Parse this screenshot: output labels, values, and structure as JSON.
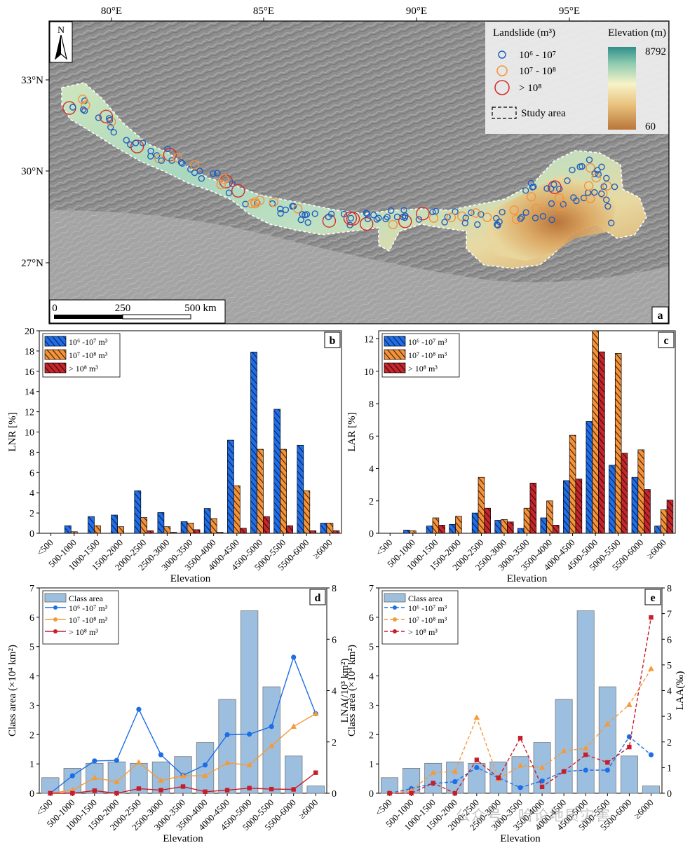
{
  "panel_a": {
    "letter": "a",
    "north_label": "N",
    "lon_ticks": [
      "80°E",
      "85°E",
      "90°E",
      "95°E"
    ],
    "lat_ticks": [
      "33°N",
      "30°N",
      "27°N"
    ],
    "legend": {
      "landslide_title": "Landslide (m³)",
      "classes": [
        "10⁶ - 10⁷",
        "10⁷ - 10⁸",
        "> 10⁸"
      ],
      "study_area": "Study area",
      "elevation_title": "Elevation (m)",
      "elev_max": "8792",
      "elev_min": "60"
    },
    "scalebar": [
      "0",
      "250",
      "500 km"
    ],
    "colors": {
      "small": "#1f5fbf",
      "medium": "#f5923a",
      "large": "#d42a2a"
    }
  },
  "chart_data": [
    {
      "panel": "b",
      "type": "bar",
      "ylabel": "LNR [%]",
      "xlabel": "Elevation",
      "ylim": [
        0,
        20
      ],
      "yticks": [
        0,
        2,
        4,
        6,
        8,
        10,
        12,
        14,
        16,
        18,
        20
      ],
      "categories": [
        "<500",
        "500-1000",
        "1000-1500",
        "1500-2000",
        "2000-2500",
        "2500-3000",
        "3000-3500",
        "3500-4000",
        "4000-4500",
        "4500-5000",
        "5000-5500",
        "5500-6000",
        "≥6000"
      ],
      "legend": [
        "10⁶ -10⁷ m³",
        "10⁷ -10⁸ m³",
        "> 10⁸ m³"
      ],
      "series": [
        {
          "name": "10⁶ -10⁷ m³",
          "color": "#1f6fe8",
          "values": [
            0,
            0.75,
            1.65,
            1.8,
            4.2,
            2.05,
            1.15,
            2.45,
            9.2,
            17.9,
            12.25,
            8.7,
            1.0
          ]
        },
        {
          "name": "10⁷ -10⁸ m³",
          "color": "#f5923a",
          "values": [
            0,
            0.15,
            0.75,
            0.65,
            1.55,
            0.65,
            1.0,
            1.45,
            4.7,
            8.3,
            8.3,
            4.2,
            1.0
          ]
        },
        {
          "name": "> 10⁸ m³",
          "color": "#c6262b",
          "values": [
            0,
            0,
            0,
            0,
            0.25,
            0.1,
            0.35,
            0.1,
            0.5,
            1.65,
            0.75,
            0.25,
            0.25
          ]
        }
      ]
    },
    {
      "panel": "c",
      "type": "bar",
      "ylabel": "LAR [%]",
      "xlabel": "Elevation",
      "ylim": [
        0,
        12.5
      ],
      "yticks": [
        0,
        2,
        4,
        6,
        8,
        10,
        12
      ],
      "categories": [
        "<500",
        "500-1000",
        "1000-1500",
        "1500-2000",
        "2000-2500",
        "2500-3000",
        "3000-3500",
        "3500-4000",
        "4000-4500",
        "4500-5000",
        "5000-5500",
        "5500-6000",
        "≥6000"
      ],
      "legend": [
        "10⁶ -10⁷ m³",
        "10⁷ -10⁸ m³",
        "> 10⁸ m³"
      ],
      "series": [
        {
          "name": "10⁶ -10⁷ m³",
          "color": "#1f6fe8",
          "values": [
            0,
            0.2,
            0.45,
            0.55,
            1.25,
            0.8,
            0.3,
            0.95,
            3.25,
            6.9,
            4.2,
            3.45,
            0.45
          ]
        },
        {
          "name": "10⁷ -10⁸ m³",
          "color": "#f5923a",
          "values": [
            0,
            0.15,
            0.95,
            1.05,
            3.45,
            0.85,
            1.55,
            2.0,
            6.05,
            12.5,
            11.1,
            5.15,
            1.45
          ]
        },
        {
          "name": "> 10⁸ m³",
          "color": "#c6262b",
          "values": [
            0,
            0,
            0.5,
            0,
            1.55,
            0.7,
            3.1,
            0.5,
            3.35,
            11.2,
            4.95,
            2.7,
            2.05
          ]
        }
      ]
    },
    {
      "panel": "d",
      "type": "bar-line",
      "ylabel_left": "Class area (×10⁴ km²)",
      "ylabel_right": "LNA(/10³ km²)",
      "xlabel": "Elevation",
      "ylim_left": [
        0,
        7
      ],
      "yticks_left": [
        0,
        1,
        2,
        3,
        4,
        5,
        6,
        7
      ],
      "ylim_right": [
        0,
        8
      ],
      "yticks_right": [
        0,
        2,
        4,
        6,
        8
      ],
      "categories": [
        "<500",
        "500-1000",
        "1000-1500",
        "1500-2000",
        "2000-2500",
        "2500-3000",
        "3000-3500",
        "3500-4000",
        "4000-4500",
        "4500-5000",
        "5000-5500",
        "5500-6000",
        "≥6000"
      ],
      "legend": [
        "Class area",
        "10⁶ -10⁷ m³",
        "10⁷ -10⁸ m³",
        "> 10⁸ m³"
      ],
      "bars": {
        "name": "Class area",
        "color": "#9dbfdf",
        "values": [
          0.53,
          0.85,
          1.02,
          1.07,
          1.02,
          1.07,
          1.25,
          1.73,
          3.2,
          6.22,
          3.63,
          1.27,
          0.25
        ]
      },
      "series": [
        {
          "name": "10⁶ -10⁷ m³",
          "color": "#1c6ee6",
          "marker": "circle",
          "values": [
            0,
            0.68,
            1.26,
            1.28,
            3.27,
            1.5,
            0.7,
            1.1,
            2.28,
            2.3,
            2.6,
            5.3,
            3.1
          ]
        },
        {
          "name": "10⁷ -10⁸ m³",
          "color": "#f59a3a",
          "marker": "triangle",
          "values": [
            0,
            0.12,
            0.6,
            0.45,
            1.2,
            0.5,
            0.68,
            0.68,
            1.18,
            1.1,
            1.85,
            2.6,
            3.1
          ]
        },
        {
          "name": "> 10⁸ m³",
          "color": "#c81e2a",
          "marker": "square",
          "values": [
            0,
            0,
            0.1,
            0,
            0.18,
            0.12,
            0.26,
            0.06,
            0.12,
            0.2,
            0.16,
            0.15,
            0.8
          ]
        }
      ]
    },
    {
      "panel": "e",
      "type": "bar-line",
      "ylabel_left": "Class area (×10⁴ km²)",
      "ylabel_right": "LAA(‰)",
      "xlabel": "Elevation",
      "ylim_left": [
        0,
        7
      ],
      "yticks_left": [
        0,
        1,
        2,
        3,
        4,
        5,
        6,
        7
      ],
      "ylim_right": [
        0,
        8
      ],
      "yticks_right": [
        0,
        1,
        2,
        3,
        4,
        5,
        6,
        7,
        8
      ],
      "categories": [
        "<500",
        "500-1000",
        "1000-1500",
        "1500-2000",
        "2000-2500",
        "2500-3000",
        "3000-3500",
        "3500-4000",
        "4000-4500",
        "4500-5000",
        "5000-5500",
        "5500-6000",
        "≥6000"
      ],
      "legend": [
        "Class area",
        "10⁶ -10⁷ m³",
        "10⁷ -10⁸ m³",
        "> 10⁸ m³"
      ],
      "bars": {
        "name": "Class area",
        "color": "#9dbfdf",
        "values": [
          0.53,
          0.85,
          1.02,
          1.07,
          1.02,
          1.07,
          1.25,
          1.73,
          3.2,
          6.22,
          3.63,
          1.27,
          0.25
        ]
      },
      "series": [
        {
          "name": "10⁶ -10⁷ m³",
          "color": "#1c6ee6",
          "marker": "circle",
          "values": [
            0,
            0.18,
            0.38,
            0.45,
            1.0,
            0.6,
            0.22,
            0.48,
            0.85,
            0.9,
            0.9,
            2.2,
            1.5
          ]
        },
        {
          "name": "10⁷ -10⁸ m³",
          "color": "#f59a3a",
          "marker": "triangle",
          "values": [
            0,
            0.1,
            0.8,
            0.85,
            2.95,
            0.55,
            1.08,
            1.0,
            1.65,
            1.75,
            2.7,
            3.45,
            4.85
          ]
        },
        {
          "name": "> 10⁸ m³",
          "color": "#c81e2a",
          "marker": "square",
          "values": [
            0,
            0,
            0.4,
            0,
            1.3,
            0.6,
            2.15,
            0.25,
            0.85,
            1.5,
            1.2,
            1.8,
            6.85
          ]
        }
      ]
    }
  ],
  "watermark": "公众号 · 哈论地质灾害"
}
